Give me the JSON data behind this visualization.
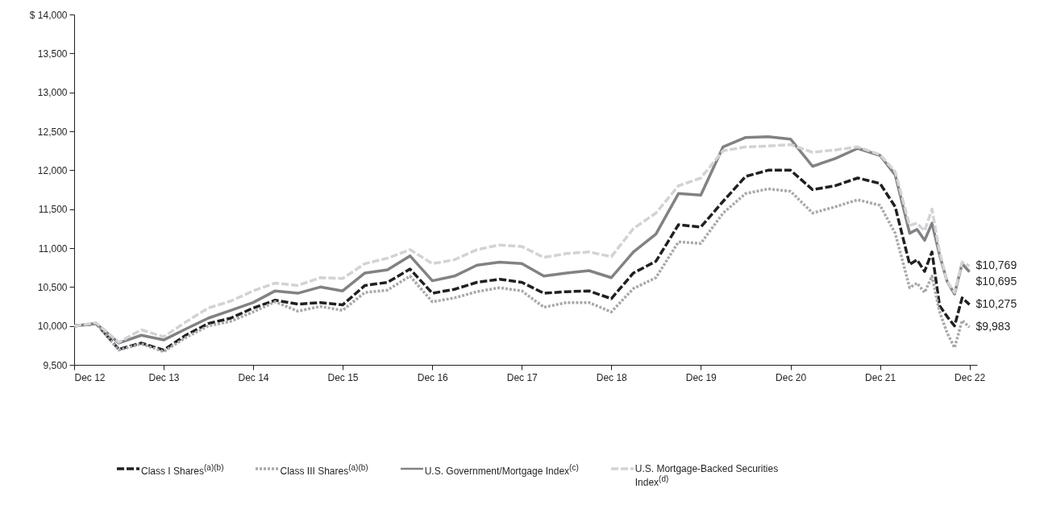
{
  "chart_data": {
    "type": "line",
    "x": [
      "2012-12",
      "2013-03",
      "2013-06",
      "2013-09",
      "2013-12",
      "2014-03",
      "2014-06",
      "2014-09",
      "2014-12",
      "2015-03",
      "2015-06",
      "2015-09",
      "2015-12",
      "2016-03",
      "2016-06",
      "2016-09",
      "2016-12",
      "2017-03",
      "2017-06",
      "2017-09",
      "2017-12",
      "2018-03",
      "2018-06",
      "2018-09",
      "2018-12",
      "2019-03",
      "2019-06",
      "2019-09",
      "2019-12",
      "2020-03",
      "2020-06",
      "2020-09",
      "2020-12",
      "2021-03",
      "2021-06",
      "2021-09",
      "2021-12",
      "2022-02",
      "2022-04",
      "2022-05",
      "2022-06",
      "2022-07",
      "2022-08",
      "2022-09",
      "2022-10",
      "2022-11",
      "2022-12"
    ],
    "series": [
      {
        "name": "Class I Shares$^{(a)(b)}$",
        "color": "#231f20",
        "line_style": "dashed",
        "values": [
          10000,
          10030,
          9700,
          9780,
          9690,
          9880,
          10030,
          10100,
          10230,
          10330,
          10280,
          10300,
          10270,
          10520,
          10560,
          10730,
          10420,
          10470,
          10560,
          10600,
          10560,
          10420,
          10440,
          10450,
          10350,
          10680,
          10830,
          11300,
          11270,
          11600,
          11920,
          12000,
          12000,
          11750,
          11800,
          11900,
          11830,
          11530,
          10790,
          10850,
          10700,
          10950,
          10260,
          10120,
          10000,
          10360,
          10275
        ],
        "value_labels": [
          null,
          null,
          null,
          null,
          null,
          null,
          null,
          null,
          null,
          null,
          null,
          null,
          null,
          null,
          null,
          null,
          null,
          null,
          null,
          null,
          null,
          null,
          null,
          null,
          null,
          null,
          null,
          null,
          null,
          null,
          null,
          null,
          null,
          null,
          null,
          null,
          null,
          null,
          null,
          null,
          null,
          null,
          null,
          null,
          null,
          null,
          "$10,275"
        ]
      },
      {
        "name": "Class III  Shares$^{(a)(b)}$",
        "color": "#a7a9ac",
        "line_style": "dotted",
        "values": [
          10000,
          10030,
          9690,
          9770,
          9670,
          9850,
          10000,
          10060,
          10180,
          10310,
          10190,
          10250,
          10200,
          10430,
          10460,
          10640,
          10310,
          10360,
          10440,
          10490,
          10450,
          10240,
          10300,
          10300,
          10180,
          10480,
          10620,
          11080,
          11060,
          11450,
          11700,
          11760,
          11730,
          11450,
          11530,
          11620,
          11550,
          11190,
          10490,
          10550,
          10430,
          10640,
          10180,
          9910,
          9720,
          10070,
          9983
        ],
        "value_labels": [
          null,
          null,
          null,
          null,
          null,
          null,
          null,
          null,
          null,
          null,
          null,
          null,
          null,
          null,
          null,
          null,
          null,
          null,
          null,
          null,
          null,
          null,
          null,
          null,
          null,
          null,
          null,
          null,
          null,
          null,
          null,
          null,
          null,
          null,
          null,
          null,
          null,
          null,
          null,
          null,
          null,
          null,
          null,
          null,
          null,
          null,
          "$9,983"
        ]
      },
      {
        "name": "U.S. Government/Mortgage Index$^{(c)}$",
        "color": "#808285",
        "line_style": "solid",
        "values": [
          10000,
          10030,
          9780,
          9880,
          9820,
          9960,
          10100,
          10200,
          10300,
          10450,
          10420,
          10500,
          10450,
          10680,
          10720,
          10900,
          10580,
          10640,
          10780,
          10820,
          10800,
          10640,
          10680,
          10710,
          10620,
          10950,
          11180,
          11700,
          11680,
          12300,
          12420,
          12430,
          12400,
          12050,
          12150,
          12280,
          12190,
          11940,
          11190,
          11240,
          11100,
          11320,
          10910,
          10570,
          10410,
          10800,
          10695
        ],
        "value_labels": [
          null,
          null,
          null,
          null,
          null,
          null,
          null,
          null,
          null,
          null,
          null,
          null,
          null,
          null,
          null,
          null,
          null,
          null,
          null,
          null,
          null,
          null,
          null,
          null,
          null,
          null,
          null,
          null,
          null,
          null,
          null,
          null,
          null,
          null,
          null,
          null,
          null,
          null,
          null,
          null,
          null,
          null,
          null,
          null,
          null,
          null,
          "$10,695"
        ]
      },
      {
        "name": "U.S. Mortgage-Backed Securities Index$^{(d)}$",
        "color": "#d1d3d4",
        "line_style": "dashed",
        "values": [
          10000,
          10040,
          9790,
          9950,
          9860,
          10050,
          10230,
          10320,
          10450,
          10550,
          10520,
          10620,
          10610,
          10800,
          10870,
          10980,
          10800,
          10850,
          10980,
          11040,
          11020,
          10880,
          10930,
          10950,
          10890,
          11250,
          11450,
          11800,
          11900,
          12250,
          12300,
          12310,
          12330,
          12230,
          12260,
          12300,
          12200,
          11980,
          11290,
          11320,
          11220,
          11500,
          10950,
          10570,
          10430,
          10820,
          10769
        ],
        "value_labels": [
          null,
          null,
          null,
          null,
          null,
          null,
          null,
          null,
          null,
          null,
          null,
          null,
          null,
          null,
          null,
          null,
          null,
          null,
          null,
          null,
          null,
          null,
          null,
          null,
          null,
          null,
          null,
          null,
          null,
          null,
          null,
          null,
          null,
          null,
          null,
          null,
          null,
          null,
          null,
          null,
          null,
          null,
          null,
          null,
          null,
          null,
          "$10,769"
        ]
      }
    ],
    "xlim": [
      "2012-12",
      "2023-01"
    ],
    "xticks": [
      {
        "value": "2012-12",
        "label": "Dec 12"
      },
      {
        "value": "2013-12",
        "label": "Dec 13"
      },
      {
        "value": "2014-12",
        "label": "Dec 14"
      },
      {
        "value": "2015-12",
        "label": "Dec 15"
      },
      {
        "value": "2016-12",
        "label": "Dec 16"
      },
      {
        "value": "2017-12",
        "label": "Dec 17"
      },
      {
        "value": "2018-12",
        "label": "Dec 18"
      },
      {
        "value": "2019-12",
        "label": "Dec 19"
      },
      {
        "value": "2020-12",
        "label": "Dec 20"
      },
      {
        "value": "2021-12",
        "label": "Dec 21"
      },
      {
        "value": "2022-12",
        "label": "Dec 22"
      }
    ],
    "ylim": [
      9500,
      14000
    ],
    "yticks": [
      {
        "value": 9500,
        "label": "9,500"
      },
      {
        "value": 10000,
        "label": "10,000"
      },
      {
        "value": 10500,
        "label": "10,500"
      },
      {
        "value": 11000,
        "label": "11,000"
      },
      {
        "value": 11500,
        "label": "11,500"
      },
      {
        "value": 12000,
        "label": "12,000"
      },
      {
        "value": 12500,
        "label": "12,500"
      },
      {
        "value": 13000,
        "label": "13,000"
      },
      {
        "value": 13500,
        "label": "13,500"
      },
      {
        "value": 14000,
        "label": "$ 14,000"
      }
    ],
    "grid": false,
    "legend": "bottom",
    "marker": "none"
  }
}
